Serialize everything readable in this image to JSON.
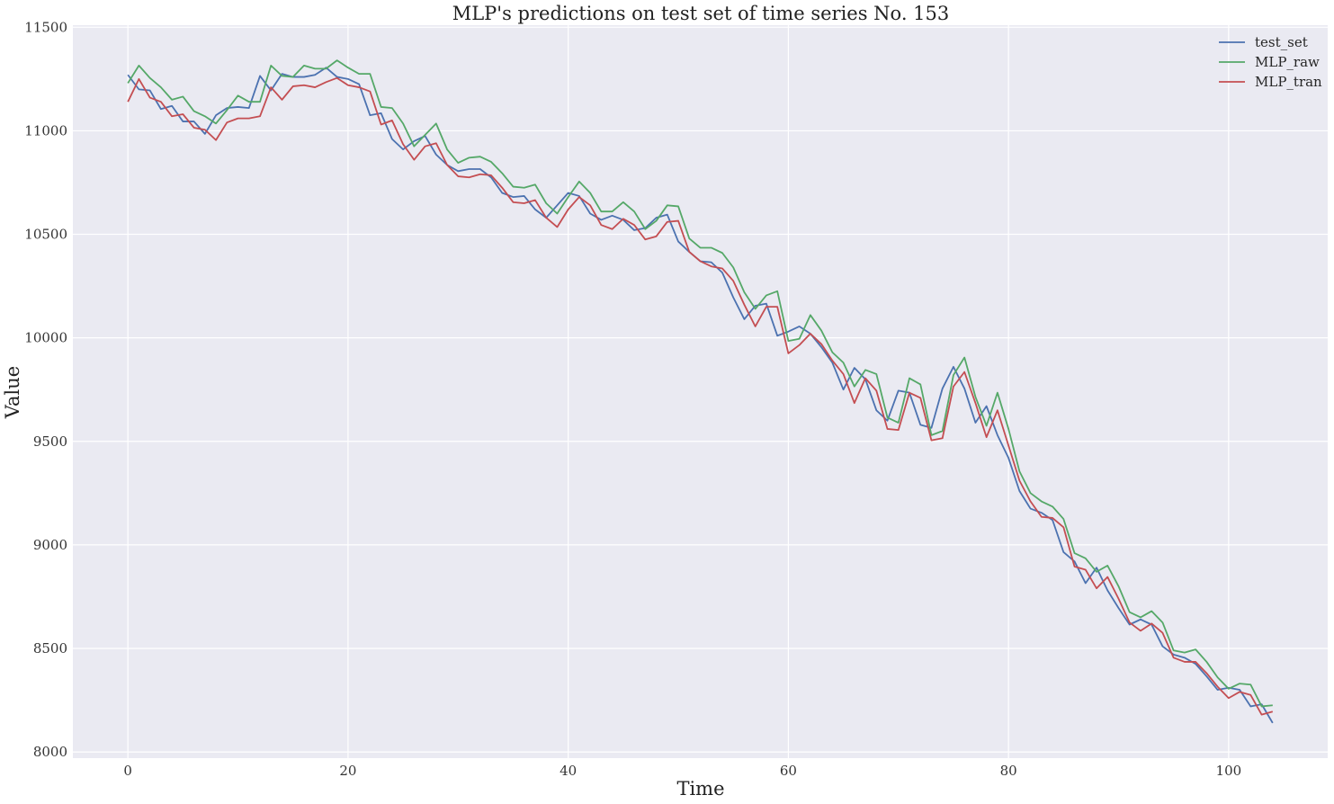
{
  "chart_data": {
    "type": "line",
    "title": "MLP's predictions on test set of time series No. 153",
    "xlabel": "Time",
    "ylabel": "Value",
    "xlim": [
      -5,
      109
    ],
    "ylim": [
      7970,
      11510
    ],
    "xticks": [
      0,
      20,
      40,
      60,
      80,
      100
    ],
    "yticks": [
      8000,
      8500,
      9000,
      9500,
      10000,
      10500,
      11000,
      11500
    ],
    "grid": true,
    "legend_position": "upper right",
    "style": {
      "plot_background": "#eaeaf2",
      "grid_color": "#ffffff"
    },
    "series": [
      {
        "name": "test_set",
        "color": "#4c72b0",
        "values": [
          11270,
          11200,
          11195,
          11105,
          11120,
          11045,
          11045,
          10985,
          11075,
          11110,
          11115,
          11110,
          11265,
          11195,
          11275,
          11260,
          11260,
          11270,
          11305,
          11260,
          11250,
          11225,
          11075,
          11085,
          10960,
          10910,
          10950,
          10975,
          10885,
          10835,
          10805,
          10815,
          10815,
          10775,
          10700,
          10680,
          10685,
          10620,
          10580,
          10640,
          10700,
          10685,
          10600,
          10570,
          10590,
          10570,
          10520,
          10530,
          10580,
          10595,
          10465,
          10415,
          10370,
          10365,
          10315,
          10195,
          10090,
          10155,
          10165,
          10010,
          10030,
          10055,
          10020,
          9955,
          9880,
          9750,
          9855,
          9800,
          9650,
          9600,
          9745,
          9735,
          9580,
          9565,
          9755,
          9860,
          9755,
          9590,
          9670,
          9530,
          9420,
          9260,
          9175,
          9155,
          9120,
          8965,
          8920,
          8815,
          8890,
          8780,
          8695,
          8615,
          8640,
          8615,
          8510,
          8470,
          8455,
          8425,
          8365,
          8300,
          8310,
          8300,
          8220,
          8230,
          8140
        ]
      },
      {
        "name": "MLP_raw",
        "color": "#55a868",
        "values": [
          11230,
          11315,
          11255,
          11210,
          11150,
          11165,
          11095,
          11070,
          11035,
          11100,
          11170,
          11140,
          11140,
          11315,
          11265,
          11260,
          11315,
          11300,
          11300,
          11340,
          11305,
          11275,
          11275,
          11115,
          11110,
          11035,
          10925,
          10980,
          11035,
          10910,
          10845,
          10870,
          10875,
          10850,
          10795,
          10730,
          10725,
          10740,
          10650,
          10600,
          10680,
          10755,
          10700,
          10610,
          10610,
          10655,
          10610,
          10525,
          10565,
          10640,
          10635,
          10480,
          10435,
          10435,
          10410,
          10340,
          10220,
          10140,
          10205,
          10225,
          9985,
          9995,
          10110,
          10035,
          9930,
          9880,
          9765,
          9845,
          9825,
          9615,
          9590,
          9805,
          9775,
          9530,
          9550,
          9820,
          9905,
          9715,
          9575,
          9735,
          9560,
          9355,
          9250,
          9210,
          9185,
          9125,
          8960,
          8935,
          8870,
          8900,
          8800,
          8675,
          8650,
          8680,
          8625,
          8490,
          8480,
          8495,
          8435,
          8360,
          8305,
          8330,
          8325,
          8220,
          8225
        ]
      },
      {
        "name": "MLP_tran",
        "color": "#c44e52",
        "values": [
          11140,
          11250,
          11160,
          11140,
          11070,
          11080,
          11015,
          11005,
          10955,
          11040,
          11060,
          11060,
          11070,
          11210,
          11150,
          11215,
          11220,
          11210,
          11235,
          11255,
          11220,
          11210,
          11190,
          11030,
          11050,
          10935,
          10860,
          10925,
          10940,
          10835,
          10780,
          10775,
          10790,
          10785,
          10725,
          10655,
          10650,
          10665,
          10580,
          10535,
          10620,
          10680,
          10640,
          10545,
          10525,
          10575,
          10545,
          10475,
          10490,
          10560,
          10565,
          10415,
          10370,
          10345,
          10335,
          10275,
          10160,
          10055,
          10150,
          10150,
          9925,
          9965,
          10020,
          9970,
          9890,
          9825,
          9685,
          9805,
          9745,
          9560,
          9555,
          9735,
          9710,
          9505,
          9515,
          9765,
          9835,
          9685,
          9520,
          9650,
          9480,
          9310,
          9210,
          9135,
          9130,
          9085,
          8895,
          8880,
          8790,
          8845,
          8740,
          8625,
          8585,
          8620,
          8575,
          8455,
          8435,
          8435,
          8380,
          8315,
          8260,
          8290,
          8275,
          8180,
          8195
        ]
      }
    ]
  }
}
